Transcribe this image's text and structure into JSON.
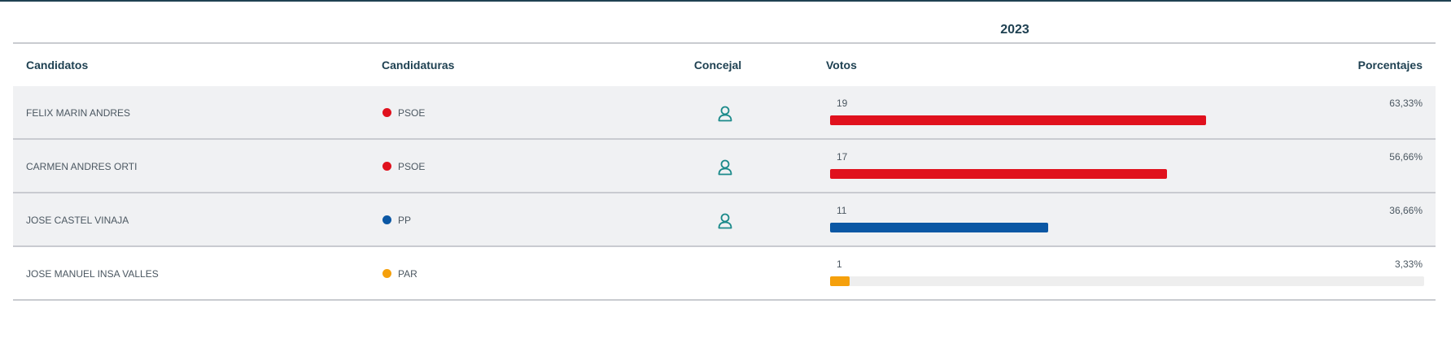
{
  "year": "2023",
  "headers": {
    "candidates": "Candidatos",
    "parties": "Candidaturas",
    "councillor": "Concejal",
    "votes": "Votos",
    "percentages": "Porcentajes"
  },
  "colors": {
    "PSOE": "#e0111d",
    "PP": "#0b57a4",
    "PAR": "#f5a00c",
    "accent": "#1f4152",
    "icon": "#1b8a8a"
  },
  "rows": [
    {
      "name": "FELIX MARIN ANDRES",
      "party": "PSOE",
      "party_color": "#e0111d",
      "councillor": true,
      "councillor_icon": "person-icon",
      "votes": "19",
      "percentage": "63,33%",
      "bar_percent": 63.33,
      "track": false
    },
    {
      "name": "CARMEN ANDRES ORTI",
      "party": "PSOE",
      "party_color": "#e0111d",
      "councillor": true,
      "councillor_icon": "person-icon",
      "votes": "17",
      "percentage": "56,66%",
      "bar_percent": 56.66,
      "track": false
    },
    {
      "name": "JOSE CASTEL VINAJA",
      "party": "PP",
      "party_color": "#0b57a4",
      "councillor": true,
      "councillor_icon": "person-icon",
      "votes": "11",
      "percentage": "36,66%",
      "bar_percent": 36.66,
      "track": false
    },
    {
      "name": "JOSE MANUEL INSA VALLES",
      "party": "PAR",
      "party_color": "#f5a00c",
      "councillor": false,
      "votes": "1",
      "percentage": "3,33%",
      "bar_percent": 3.33,
      "track": true
    }
  ]
}
